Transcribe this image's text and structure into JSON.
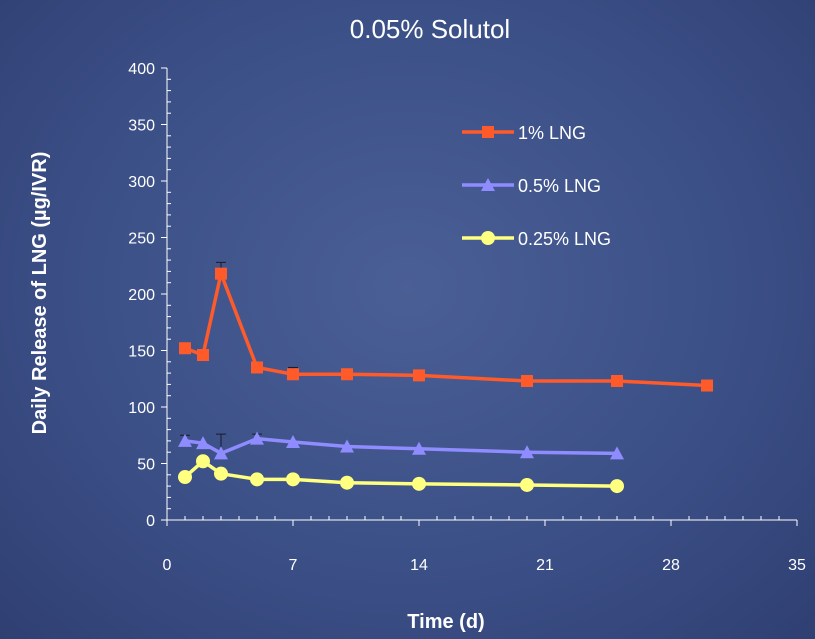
{
  "chart_data": {
    "type": "line",
    "title": "0.05% Solutol",
    "xlabel": "Time (d)",
    "ylabel": "Daily Release of LNG (µg/IVR)",
    "xlim": [
      0,
      35
    ],
    "ylim": [
      0,
      400
    ],
    "xticks": [
      0,
      7,
      14,
      21,
      28,
      35
    ],
    "yticks": [
      0,
      50,
      100,
      150,
      200,
      250,
      300,
      350,
      400
    ],
    "grid": false,
    "legend_position": "top-right",
    "series": [
      {
        "name": "1% LNG",
        "color": "#ff5a2a",
        "marker": "square",
        "x": [
          1,
          2,
          3,
          5,
          7,
          10,
          14,
          20,
          25,
          30
        ],
        "y": [
          152,
          146,
          218,
          135,
          129,
          129,
          128,
          123,
          123,
          119
        ],
        "err": [
          0,
          0,
          10,
          0,
          6,
          0,
          0,
          0,
          0,
          0
        ]
      },
      {
        "name": "0.5% LNG",
        "color": "#8f8cff",
        "marker": "triangle",
        "x": [
          1,
          2,
          3,
          5,
          7,
          10,
          14,
          20,
          25
        ],
        "y": [
          70,
          68,
          59,
          72,
          69,
          65,
          63,
          60,
          59
        ],
        "err": [
          5,
          0,
          17,
          4,
          0,
          0,
          0,
          0,
          0
        ]
      },
      {
        "name": "0.25% LNG",
        "color": "#ffff80",
        "marker": "circle",
        "x": [
          1,
          2,
          3,
          5,
          7,
          10,
          14,
          20,
          25
        ],
        "y": [
          38,
          52,
          41,
          36,
          36,
          33,
          32,
          31,
          30
        ],
        "err": [
          0,
          0,
          0,
          0,
          0,
          0,
          0,
          0,
          0
        ]
      }
    ]
  }
}
